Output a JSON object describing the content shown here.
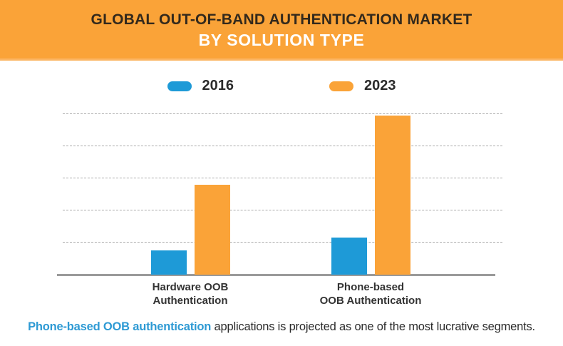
{
  "header": {
    "title_line1": "GLOBAL OUT-OF-BAND AUTHENTICATION MARKET",
    "title_line2": "BY SOLUTION TYPE"
  },
  "chart_data": {
    "type": "bar",
    "title": "Global Out-of-Band Authentication Market by Solution Type",
    "categories": [
      "Hardware OOB\nAuthentication",
      "Phone-based\nOOB Authentication"
    ],
    "series": [
      {
        "name": "2016",
        "color": "#1E9AD7",
        "values": [
          0.75,
          1.15
        ]
      },
      {
        "name": "2023",
        "color": "#FAA338",
        "values": [
          2.8,
          4.95
        ]
      }
    ],
    "value_axis": {
      "tick_labels_visible": false,
      "units": "relative units (no numeric axis labels shown)",
      "ylim": [
        0,
        5
      ],
      "gridlines": [
        1,
        2,
        3,
        4,
        5
      ],
      "gridline_style": "dashed"
    },
    "legend_position": "top"
  },
  "caption": {
    "highlight": "Phone-based OOB authentication",
    "rest": " applications is projected as one of the most lucrative segments.",
    "highlight_color": "#2E9AD4"
  },
  "colors": {
    "header_bg": "#FAA338",
    "header_bottom_strip": "#FBB563",
    "title_dark": "#33291C",
    "title_light": "#FFFFFF",
    "bar_2016": "#1E9AD7",
    "bar_2023": "#FAA338",
    "gridline": "#ABABAB",
    "axis_line": "#9A9A9A"
  }
}
